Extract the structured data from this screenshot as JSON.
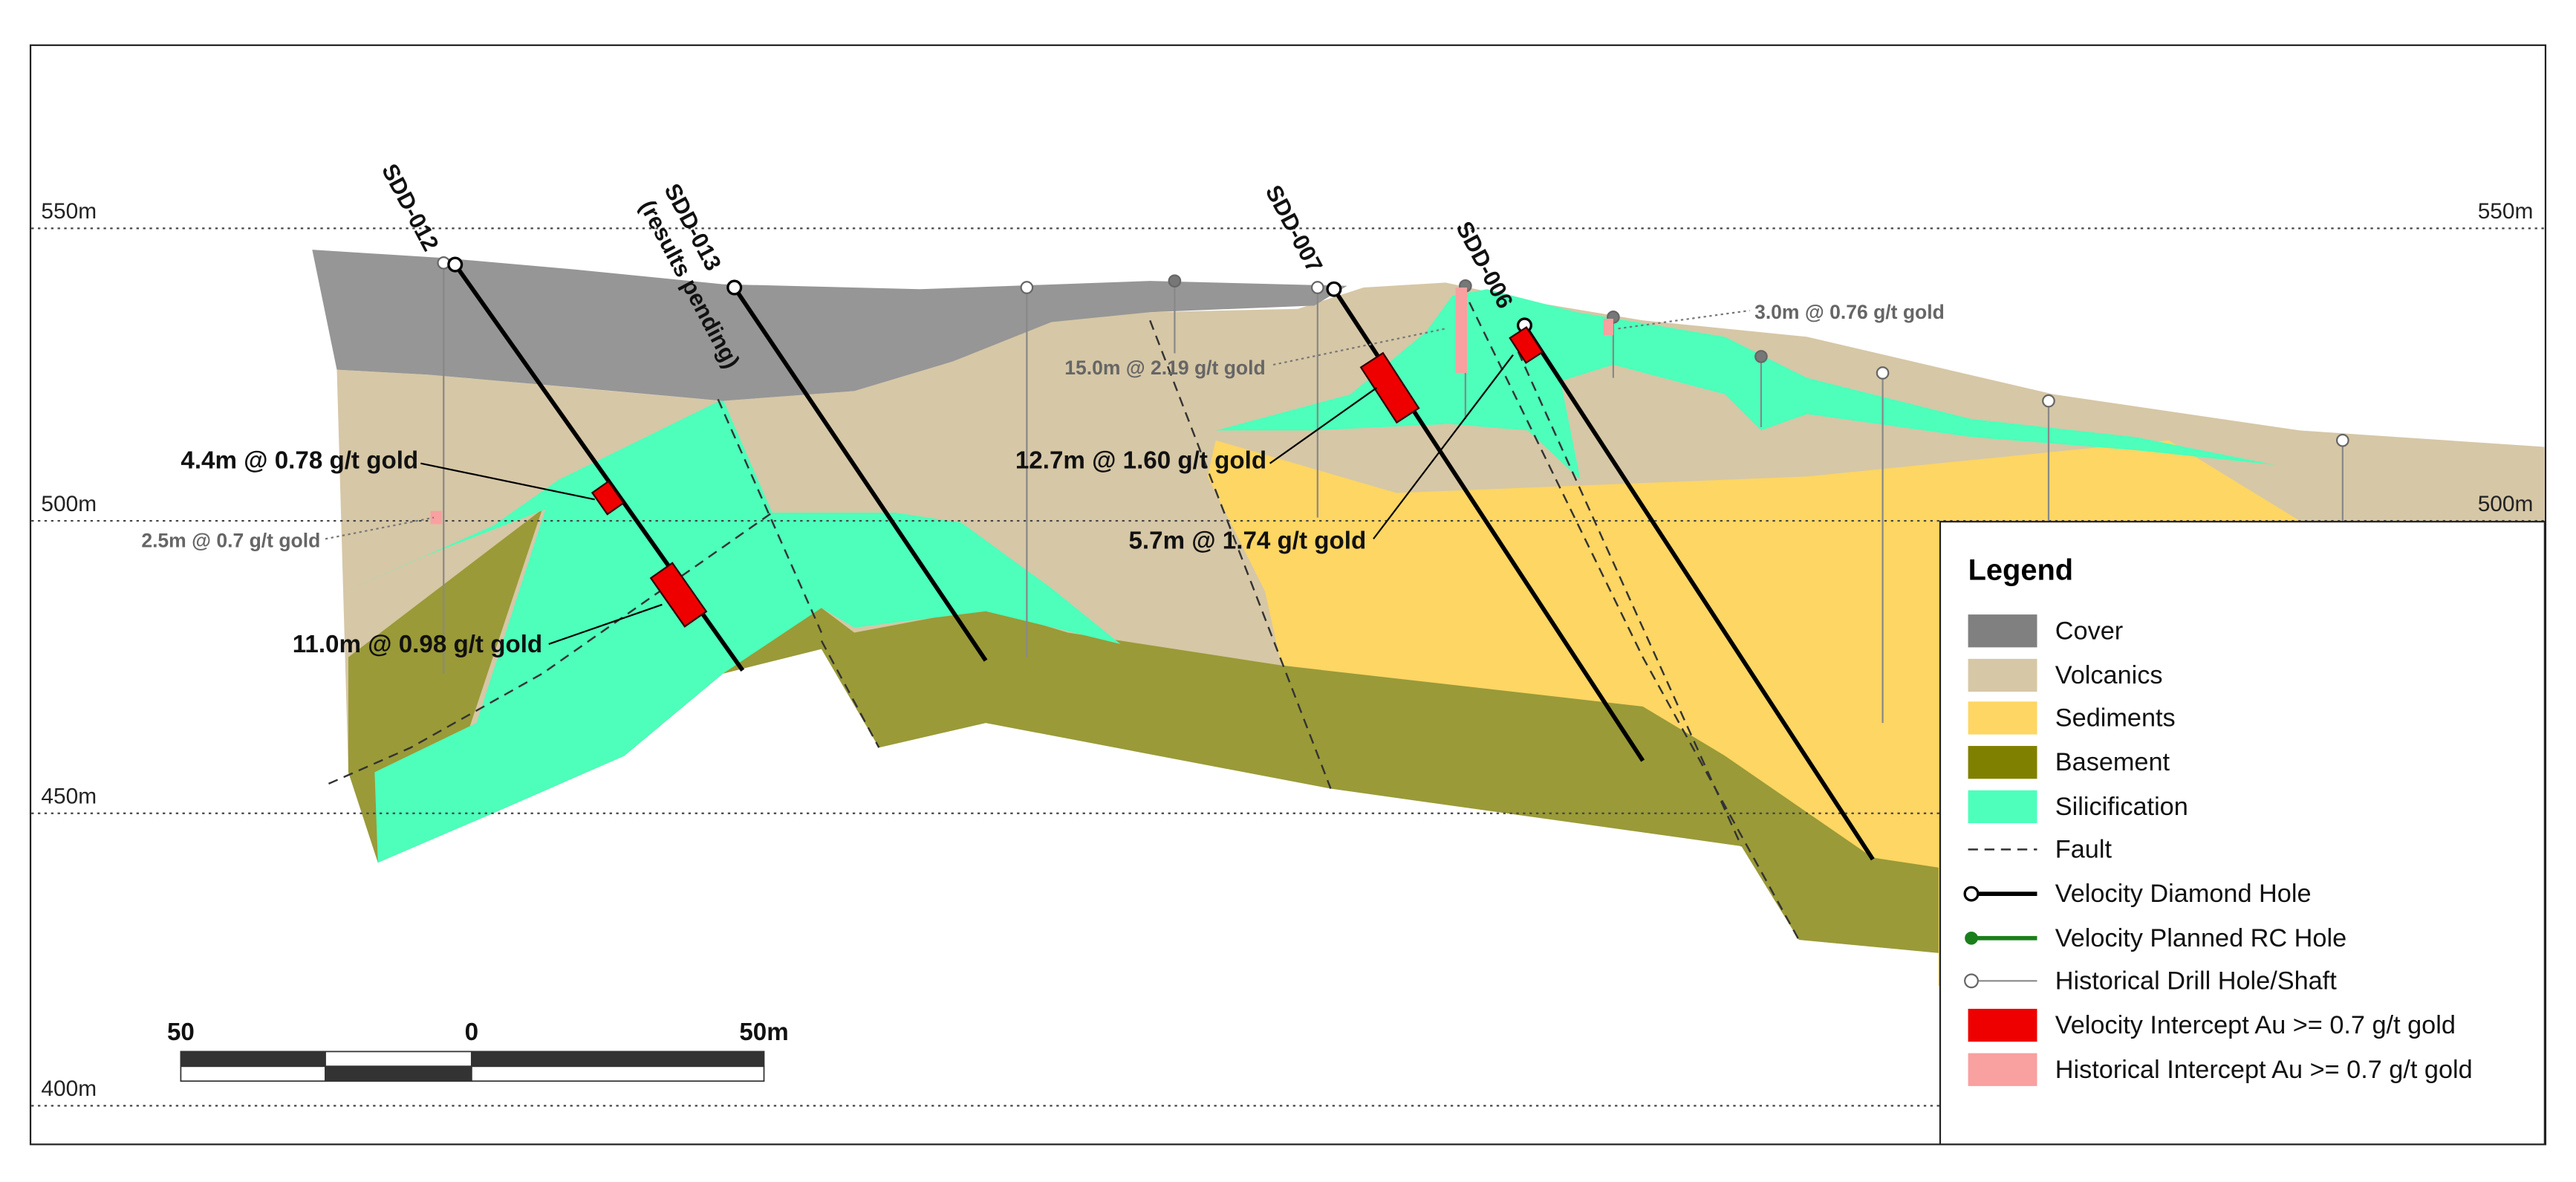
{
  "elevation_labels": [
    "550m",
    "500m",
    "450m",
    "400m"
  ],
  "drill_holes": [
    {
      "label": "SDD-012"
    },
    {
      "label": "SDD-013",
      "note": "(results pending)"
    },
    {
      "label": "SDD-007"
    },
    {
      "label": "SDD-006"
    }
  ],
  "intercepts": [
    "4.4m @ 0.78 g/t gold",
    "11.0m @ 0.98 g/t gold",
    "12.7m @ 1.60 g/t gold",
    "5.7m @ 1.74 g/t gold"
  ],
  "historical_intercepts": [
    "2.5m @ 0.7 g/t gold",
    "15.0m @ 2.19 g/t gold",
    "3.0m @ 0.76 g/t gold"
  ],
  "scale_bar": [
    "50",
    "0",
    "50m"
  ],
  "legend": {
    "title": "Legend",
    "items": [
      "Cover",
      "Volcanics",
      "Sediments",
      "Basement",
      "Silicification",
      "Fault",
      "Velocity Diamond Hole",
      "Velocity Planned RC Hole",
      "Historical Drill Hole/Shaft",
      "Velocity Intercept Au >= 0.7 g/t gold",
      "Historical Intercept Au >= 0.7 g/t gold"
    ]
  }
}
